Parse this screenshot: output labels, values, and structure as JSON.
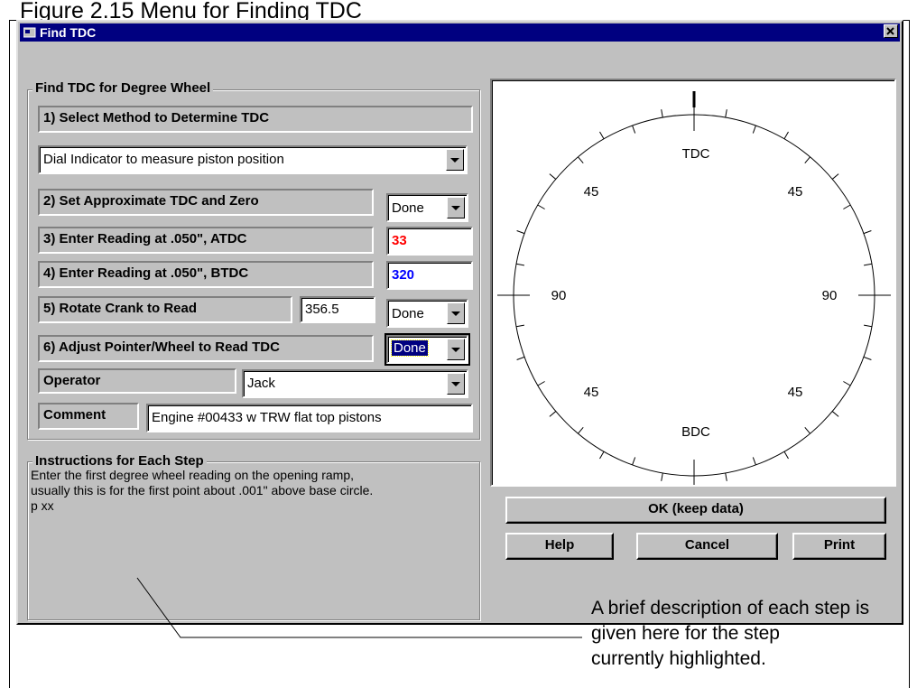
{
  "figure": {
    "caption": "Figure 2.15  Menu for Finding TDC",
    "annotation": [
      "A brief description of each step is given here for the step",
      "currently highlighted."
    ]
  },
  "window": {
    "title": "Find TDC"
  },
  "form": {
    "group_title": "Find TDC for Degree Wheel",
    "step1": "1) Select Method to Determine TDC",
    "method": "Dial Indicator to measure piston position",
    "step2": "2) Set Approximate TDC and Zero",
    "step2_value": "Done",
    "step3": "3) Enter Reading at .050\", ATDC",
    "step3_value": "33",
    "step4": "4) Enter Reading at .050\", BTDC",
    "step4_value": "320",
    "step5": "5) Rotate Crank to Read",
    "step5_reading": "356.5",
    "step5_value": "Done",
    "step6": "6) Adjust Pointer/Wheel to Read TDC",
    "step6_value": "Done",
    "operator_label": "Operator",
    "operator": "Jack",
    "comment_label": "Comment",
    "comment": "Engine #00433 w TRW flat top pistons"
  },
  "instructions": {
    "title": "Instructions for Each Step",
    "lines": [
      "Enter the first degree wheel reading on the opening ramp,",
      "usually this is for the first point about .001\" above base circle.",
      "p xx"
    ]
  },
  "wheel": {
    "labels": [
      "TDC",
      "45",
      "45",
      "90",
      "90",
      "45",
      "45",
      "BDC"
    ]
  },
  "buttons": {
    "ok": "OK (keep data)",
    "help": "Help",
    "cancel": "Cancel",
    "print": "Print"
  }
}
